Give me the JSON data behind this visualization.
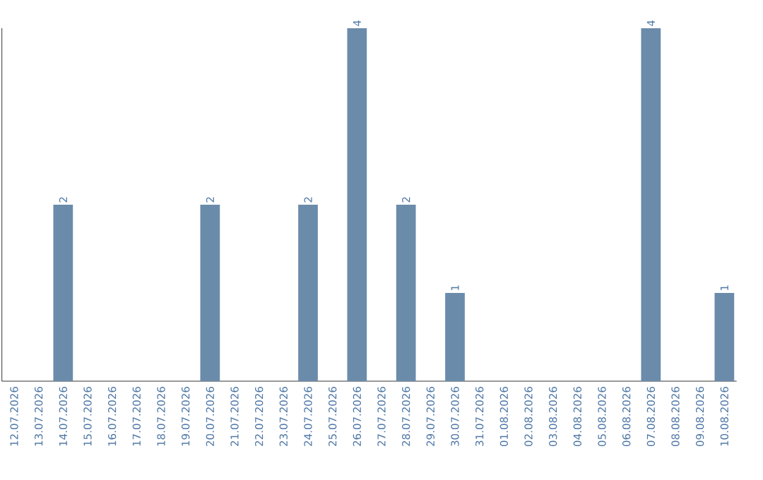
{
  "chart_data": {
    "type": "bar",
    "categories": [
      "12.07.2026",
      "13.07.2026",
      "14.07.2026",
      "15.07.2026",
      "16.07.2026",
      "17.07.2026",
      "18.07.2026",
      "19.07.2026",
      "20.07.2026",
      "21.07.2026",
      "22.07.2026",
      "23.07.2026",
      "24.07.2026",
      "25.07.2026",
      "26.07.2026",
      "27.07.2026",
      "28.07.2026",
      "29.07.2026",
      "30.07.2026",
      "31.07.2026",
      "01.08.2026",
      "02.08.2026",
      "03.08.2026",
      "04.08.2026",
      "05.08.2026",
      "06.08.2026",
      "07.08.2026",
      "08.08.2026",
      "09.08.2026",
      "10.08.2026"
    ],
    "values": [
      0,
      0,
      2,
      0,
      0,
      0,
      0,
      0,
      2,
      0,
      0,
      0,
      2,
      0,
      4,
      0,
      2,
      0,
      1,
      0,
      0,
      0,
      0,
      0,
      0,
      0,
      4,
      0,
      0,
      1
    ],
    "value_labels": [
      null,
      null,
      "2",
      null,
      null,
      null,
      null,
      null,
      "2",
      null,
      null,
      null,
      "2",
      null,
      "4",
      null,
      "2",
      null,
      "1",
      null,
      null,
      null,
      null,
      null,
      null,
      null,
      "4",
      null,
      null,
      "1"
    ],
    "color": "#6b8bab",
    "ylim": [
      0,
      4
    ],
    "tick_labels": "x",
    "grid": false
  }
}
